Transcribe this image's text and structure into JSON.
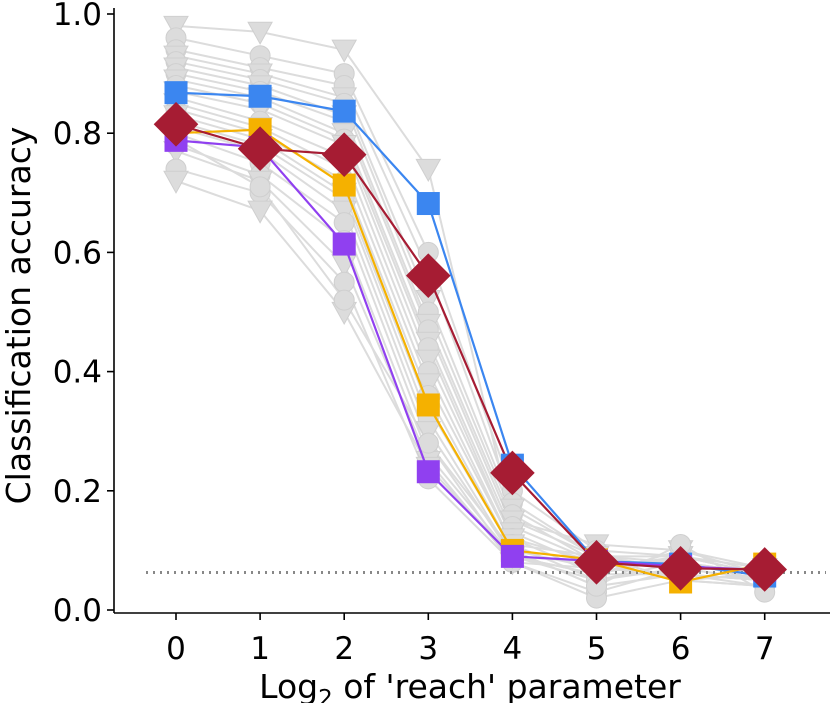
{
  "chart_data": {
    "type": "line",
    "title": "",
    "xlabel": "Log",
    "xlabel_subscript": "2",
    "xlabel_rest": " of 'reach' parameter",
    "ylabel": "Classification accuracy",
    "x": [
      0,
      1,
      2,
      3,
      4,
      5,
      6,
      7
    ],
    "x_tick_labels": [
      "0",
      "1",
      "2",
      "3",
      "4",
      "5",
      "6",
      "7"
    ],
    "y_ticks": [
      0.0,
      0.2,
      0.4,
      0.6,
      0.8,
      1.0
    ],
    "y_tick_labels": [
      "0.0",
      "0.2",
      "0.4",
      "0.6",
      "0.8",
      "1.0"
    ],
    "xlim": [
      -0.75,
      7.6
    ],
    "ylim": [
      0.0,
      1.01
    ],
    "chance_level": 0.063,
    "background_series_color": "#dcdcdc",
    "background_series": [
      {
        "marker": "triangle-down",
        "values": [
          0.98,
          0.97,
          0.94,
          0.74,
          0.15,
          0.11,
          0.1,
          0.07
        ]
      },
      {
        "marker": "circle",
        "values": [
          0.96,
          0.93,
          0.9,
          0.6,
          0.2,
          0.1,
          0.09,
          0.06
        ]
      },
      {
        "marker": "circle",
        "values": [
          0.94,
          0.91,
          0.88,
          0.57,
          0.18,
          0.09,
          0.08,
          0.06
        ]
      },
      {
        "marker": "triangle-down",
        "values": [
          0.93,
          0.9,
          0.86,
          0.52,
          0.17,
          0.09,
          0.09,
          0.07
        ]
      },
      {
        "marker": "circle",
        "values": [
          0.92,
          0.89,
          0.85,
          0.5,
          0.16,
          0.08,
          0.08,
          0.06
        ]
      },
      {
        "marker": "triangle-down",
        "values": [
          0.91,
          0.88,
          0.83,
          0.48,
          0.15,
          0.09,
          0.07,
          0.07
        ]
      },
      {
        "marker": "circle",
        "values": [
          0.9,
          0.87,
          0.82,
          0.47,
          0.14,
          0.08,
          0.08,
          0.05
        ]
      },
      {
        "marker": "triangle-down",
        "values": [
          0.89,
          0.86,
          0.8,
          0.45,
          0.13,
          0.07,
          0.09,
          0.06
        ]
      },
      {
        "marker": "circle",
        "values": [
          0.88,
          0.85,
          0.79,
          0.44,
          0.12,
          0.06,
          0.06,
          0.05
        ]
      },
      {
        "marker": "triangle-down",
        "values": [
          0.87,
          0.84,
          0.78,
          0.42,
          0.12,
          0.08,
          0.07,
          0.07
        ]
      },
      {
        "marker": "circle",
        "values": [
          0.86,
          0.82,
          0.76,
          0.4,
          0.11,
          0.05,
          0.07,
          0.05
        ]
      },
      {
        "marker": "triangle-down",
        "values": [
          0.85,
          0.81,
          0.74,
          0.38,
          0.11,
          0.09,
          0.05,
          0.06
        ]
      },
      {
        "marker": "circle",
        "values": [
          0.84,
          0.8,
          0.72,
          0.36,
          0.1,
          0.04,
          0.06,
          0.04
        ]
      },
      {
        "marker": "triangle-down",
        "values": [
          0.83,
          0.79,
          0.7,
          0.34,
          0.1,
          0.07,
          0.06,
          0.05
        ]
      },
      {
        "marker": "circle",
        "values": [
          0.82,
          0.78,
          0.69,
          0.32,
          0.09,
          0.06,
          0.1,
          0.06
        ]
      },
      {
        "marker": "triangle-down",
        "values": [
          0.81,
          0.77,
          0.67,
          0.3,
          0.09,
          0.08,
          0.05,
          0.04
        ]
      },
      {
        "marker": "circle",
        "values": [
          0.8,
          0.75,
          0.65,
          0.28,
          0.08,
          0.03,
          0.07,
          0.05
        ]
      },
      {
        "marker": "circle",
        "values": [
          0.78,
          0.73,
          0.62,
          0.26,
          0.09,
          0.05,
          0.08,
          0.06
        ]
      },
      {
        "marker": "triangle-down",
        "values": [
          0.77,
          0.72,
          0.58,
          0.25,
          0.08,
          0.07,
          0.06,
          0.05
        ]
      },
      {
        "marker": "circle",
        "values": [
          0.74,
          0.7,
          0.55,
          0.22,
          0.08,
          0.02,
          0.05,
          0.04
        ]
      },
      {
        "marker": "triangle-down",
        "values": [
          0.72,
          0.67,
          0.5,
          0.24,
          0.09,
          0.06,
          0.09,
          0.06
        ]
      },
      {
        "marker": "circle",
        "values": [
          0.79,
          0.71,
          0.52,
          0.28,
          0.1,
          0.04,
          0.11,
          0.03
        ]
      }
    ],
    "series": [
      {
        "name": "blue",
        "color": "#3b86f0",
        "marker": "square",
        "values": [
          0.868,
          0.862,
          0.837,
          0.682,
          0.243,
          0.082,
          0.077,
          0.057
        ]
      },
      {
        "name": "yellow",
        "color": "#f5b100",
        "marker": "square",
        "values": [
          0.8,
          0.806,
          0.713,
          0.344,
          0.1,
          0.084,
          0.047,
          0.077
        ]
      },
      {
        "name": "purple",
        "color": "#9040f0",
        "marker": "square",
        "values": [
          0.788,
          0.776,
          0.614,
          0.232,
          0.09,
          0.082,
          0.073,
          0.067
        ]
      },
      {
        "name": "red",
        "color": "#a61c33",
        "marker": "diamond",
        "values": [
          0.815,
          0.774,
          0.764,
          0.561,
          0.23,
          0.08,
          0.07,
          0.068
        ]
      }
    ]
  }
}
